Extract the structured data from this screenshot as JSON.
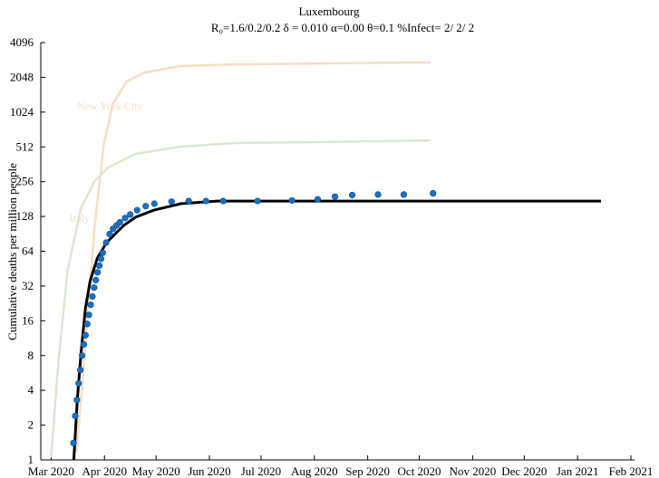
{
  "chart_data": {
    "type": "line",
    "title": "Luxembourg",
    "subtitle": "R₀=1.6/0.2/0.2  δ = 0.010  α=0.00  θ=0.1  %Infect= 2/ 2/ 2",
    "y_label": "Cumulative deaths per million people",
    "y_log_base": 2,
    "ylim": [
      1,
      4096
    ],
    "yticks": [
      1,
      2,
      4,
      8,
      16,
      32,
      64,
      128,
      256,
      512,
      1024,
      2048,
      4096
    ],
    "xlim": [
      -6,
      337
    ],
    "xticks": [
      {
        "value": 0,
        "label": "Mar 2020"
      },
      {
        "value": 31,
        "label": "Apr 2020"
      },
      {
        "value": 61,
        "label": "May 2020"
      },
      {
        "value": 92,
        "label": "Jun 2020"
      },
      {
        "value": 122,
        "label": "Jul 2020"
      },
      {
        "value": 153,
        "label": "Aug 2020"
      },
      {
        "value": 184,
        "label": "Sep 2020"
      },
      {
        "value": 214,
        "label": "Oct 2020"
      },
      {
        "value": 245,
        "label": "Nov 2020"
      },
      {
        "value": 275,
        "label": "Dec 2020"
      },
      {
        "value": 306,
        "label": "Jan 2021"
      },
      {
        "value": 337,
        "label": "Feb 2021"
      }
    ],
    "series": [
      {
        "name": "New York City",
        "color": "#f8ddc2",
        "mode": "line",
        "x": [
          14.8,
          20,
          25.3,
          30.6,
          35.9,
          43.8,
          54.3,
          75.4,
          107,
          154.5,
          220.5
        ],
        "values": [
          1.16,
          10,
          105,
          533,
          1200,
          1880,
          2260,
          2560,
          2650,
          2700,
          2760
        ]
      },
      {
        "name": "Italy",
        "color": "#dbe7cf",
        "mode": "line",
        "x": [
          0,
          4.2,
          9.5,
          17.4,
          25.3,
          33.2,
          49,
          75.4,
          107,
          154.5,
          220.5
        ],
        "values": [
          1.05,
          7,
          43,
          151,
          259,
          340,
          445,
          514,
          553,
          563,
          584
        ]
      },
      {
        "color": "#000000",
        "mode": "line",
        "x": [
          13.2,
          15.3,
          17.4,
          20,
          22.7,
          26.9,
          32.2,
          37.4,
          42.2,
          49,
          59.6,
          75.4,
          96.5,
          128,
          319.6
        ],
        "values": [
          1,
          3.41,
          8.4,
          20.7,
          35.6,
          55.8,
          76,
          91,
          107,
          126,
          145,
          165,
          174,
          174,
          174
        ]
      },
      {
        "color": "#1a6fc0",
        "mode": "markers",
        "x": [
          13,
          14,
          15,
          16,
          17,
          18,
          19,
          20,
          21,
          22,
          23,
          24,
          25,
          26,
          27,
          28,
          29,
          30,
          32,
          34,
          36,
          38,
          40,
          43,
          46,
          50,
          55,
          60,
          70,
          80,
          90,
          100,
          120,
          140,
          155,
          165,
          175,
          190,
          205,
          222
        ],
        "values": [
          1.4,
          2.4,
          3.3,
          4.6,
          6,
          8,
          10,
          12,
          15,
          18,
          22,
          26,
          31,
          36,
          42,
          48,
          55,
          62,
          76,
          90,
          100,
          107,
          114,
          124,
          133,
          145,
          157,
          165,
          172,
          174,
          174,
          174,
          174,
          176,
          180,
          190,
          196,
          198,
          198,
          203
        ]
      }
    ]
  }
}
